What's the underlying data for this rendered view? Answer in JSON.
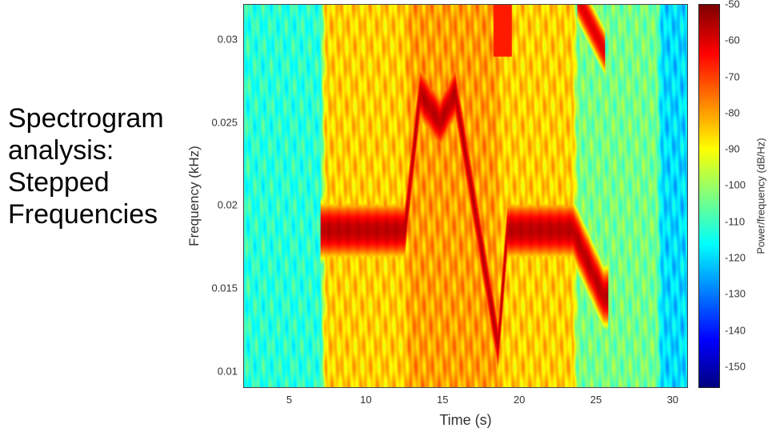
{
  "slide": {
    "title_lines": [
      "Spectrogram",
      "analysis:",
      "Stepped",
      "Frequencies"
    ]
  },
  "chart_data": {
    "type": "heatmap",
    "title": "",
    "xlabel": "Time (s)",
    "ylabel": "Frequency (kHz)",
    "xlim": [
      2,
      31
    ],
    "ylim": [
      0.009,
      0.0321
    ],
    "xticks": [
      5,
      10,
      15,
      20,
      25,
      30
    ],
    "xtick_labels": [
      "5",
      "10",
      "15",
      "20",
      "25",
      "30"
    ],
    "yticks": [
      0.01,
      0.015,
      0.02,
      0.025,
      0.03
    ],
    "ytick_labels": [
      "0.01",
      "0.015",
      "0.02",
      "0.025",
      "0.03"
    ],
    "colormap": "jet",
    "colorbar": {
      "label": "Power/frequency (dB/Hz)",
      "range": [
        -156,
        -50
      ],
      "ticks": [
        -50,
        -60,
        -70,
        -80,
        -90,
        -100,
        -110,
        -120,
        -130,
        -140,
        -150
      ],
      "tick_labels": [
        "-50",
        "-60",
        "-70",
        "-80",
        "-90",
        "-100",
        "-110",
        "-120",
        "-130",
        "-140",
        "-150"
      ]
    },
    "dominant_frequency_track": {
      "time_s": [
        7,
        12.5,
        13.5,
        14.8,
        15.8,
        18.6,
        19.2,
        23.5,
        25.5
      ],
      "frequency_khz": [
        0.0185,
        0.0185,
        0.0268,
        0.025,
        0.0268,
        0.0115,
        0.0185,
        0.0185,
        0.0145
      ],
      "peak_db": -55
    },
    "background_levels": {
      "time_s": [
        2,
        7,
        12.5,
        18.5,
        23.5,
        29,
        31
      ],
      "level_db": [
        -112,
        -85,
        -80,
        -85,
        -104,
        -120,
        -120
      ]
    }
  }
}
